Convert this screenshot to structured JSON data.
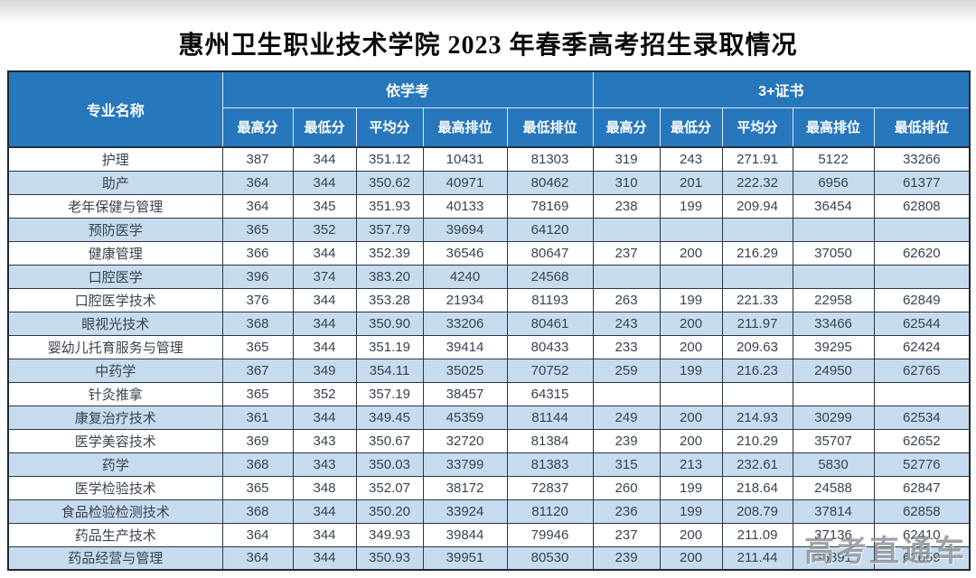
{
  "title": "惠州卫生职业技术学院 2023 年春季高考招生录取情况",
  "watermark": "高考直通车",
  "header": {
    "major_col": "专业名称",
    "group1": "依学考",
    "group2": "3+证书",
    "sub_headers": [
      "最高分",
      "最低分",
      "平均分",
      "最高排位",
      "最低排位"
    ]
  },
  "colors": {
    "header_bg": "#2777bd",
    "header_text": "#ffffff",
    "row_alt_bg": "#c6dbee",
    "row_bg": "#ffffff",
    "border_dark": "#2a3743",
    "cell_text": "#38434f",
    "watermark_gray": "#7a8086"
  },
  "chart_data": {
    "type": "table",
    "title": "惠州卫生职业技术学院 2023 年春季高考招生录取情况",
    "column_groups": [
      "依学考",
      "3+证书"
    ],
    "columns": [
      "专业名称",
      "依学考-最高分",
      "依学考-最低分",
      "依学考-平均分",
      "依学考-最高排位",
      "依学考-最低排位",
      "3+证书-最高分",
      "3+证书-最低分",
      "3+证书-平均分",
      "3+证书-最高排位",
      "3+证书-最低排位"
    ],
    "rows": [
      [
        "护理",
        "387",
        "344",
        "351.12",
        "10431",
        "81303",
        "319",
        "243",
        "271.91",
        "5122",
        "33266"
      ],
      [
        "助产",
        "364",
        "344",
        "350.62",
        "40971",
        "80462",
        "310",
        "201",
        "222.32",
        "6956",
        "61377"
      ],
      [
        "老年保健与管理",
        "364",
        "345",
        "351.93",
        "40133",
        "78169",
        "238",
        "199",
        "209.94",
        "36454",
        "62808"
      ],
      [
        "预防医学",
        "365",
        "352",
        "357.79",
        "39694",
        "64120",
        "",
        "",
        "",
        "",
        ""
      ],
      [
        "健康管理",
        "366",
        "344",
        "352.39",
        "36546",
        "80647",
        "237",
        "200",
        "216.29",
        "37050",
        "62620"
      ],
      [
        "口腔医学",
        "396",
        "374",
        "383.20",
        "4240",
        "24568",
        "",
        "",
        "",
        "",
        ""
      ],
      [
        "口腔医学技术",
        "376",
        "344",
        "353.28",
        "21934",
        "81193",
        "263",
        "199",
        "221.33",
        "22958",
        "62849"
      ],
      [
        "眼视光技术",
        "368",
        "344",
        "350.90",
        "33206",
        "80461",
        "243",
        "200",
        "211.97",
        "33466",
        "62544"
      ],
      [
        "婴幼儿托育服务与管理",
        "365",
        "344",
        "351.19",
        "39414",
        "80433",
        "233",
        "200",
        "209.63",
        "39295",
        "62424"
      ],
      [
        "中药学",
        "367",
        "349",
        "354.11",
        "35025",
        "70752",
        "259",
        "199",
        "216.23",
        "24950",
        "62765"
      ],
      [
        "针灸推拿",
        "365",
        "352",
        "357.19",
        "38457",
        "64315",
        "",
        "",
        "",
        "",
        ""
      ],
      [
        "康复治疗技术",
        "361",
        "344",
        "349.45",
        "45359",
        "81144",
        "249",
        "200",
        "214.93",
        "30299",
        "62534"
      ],
      [
        "医学美容技术",
        "369",
        "343",
        "350.67",
        "32720",
        "81384",
        "239",
        "200",
        "210.29",
        "35707",
        "62652"
      ],
      [
        "药学",
        "368",
        "343",
        "350.03",
        "33799",
        "81383",
        "315",
        "213",
        "232.61",
        "5830",
        "52776"
      ],
      [
        "医学检验技术",
        "365",
        "348",
        "352.07",
        "38172",
        "72837",
        "260",
        "199",
        "218.64",
        "24588",
        "62847"
      ],
      [
        "食品检验检测技术",
        "368",
        "344",
        "350.20",
        "33924",
        "81120",
        "236",
        "199",
        "208.79",
        "37814",
        "62858"
      ],
      [
        "药品生产技术",
        "364",
        "344",
        "349.93",
        "39844",
        "79946",
        "237",
        "200",
        "211.09",
        "37136",
        "62410"
      ],
      [
        "药品经营与管理",
        "364",
        "344",
        "350.93",
        "39951",
        "80530",
        "239",
        "200",
        "211.44",
        "35891",
        "62659"
      ]
    ]
  }
}
